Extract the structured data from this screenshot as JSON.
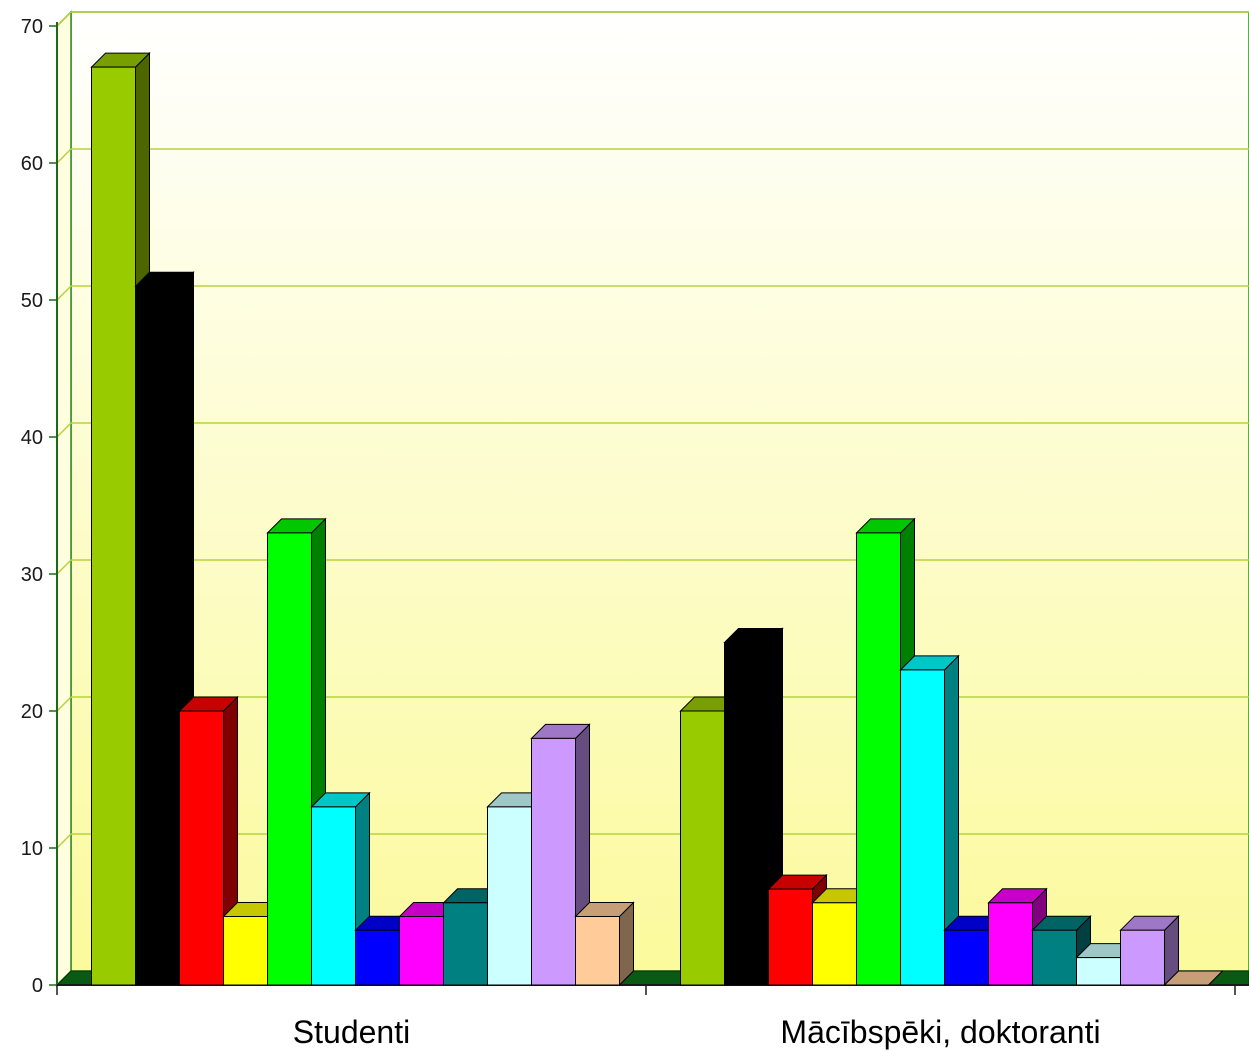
{
  "chart_data": {
    "type": "bar",
    "style": "3d-clustered",
    "categories": [
      "Studenti",
      "Mācībspēki, doktoranti"
    ],
    "series": [
      {
        "color": "#99cc00",
        "values": [
          67,
          20
        ]
      },
      {
        "color": "#000000",
        "values": [
          51,
          25
        ]
      },
      {
        "color": "#ff0000",
        "values": [
          20,
          7
        ]
      },
      {
        "color": "#ffff00",
        "values": [
          5,
          6
        ]
      },
      {
        "color": "#00ff00",
        "values": [
          33,
          33
        ]
      },
      {
        "color": "#00ffff",
        "values": [
          13,
          23
        ]
      },
      {
        "color": "#0000ff",
        "values": [
          4,
          4
        ]
      },
      {
        "color": "#ff00ff",
        "values": [
          5,
          6
        ]
      },
      {
        "color": "#008080",
        "values": [
          6,
          4
        ]
      },
      {
        "color": "#ccffff",
        "values": [
          13,
          2
        ]
      },
      {
        "color": "#cc99ff",
        "values": [
          18,
          4
        ]
      },
      {
        "color": "#ffcc99",
        "values": [
          5,
          0
        ]
      }
    ],
    "yticks": [
      "0",
      "10",
      "20",
      "30",
      "40",
      "50",
      "60",
      "70"
    ],
    "ylim": [
      0,
      70
    ],
    "grid": true,
    "legend": "none",
    "title": "",
    "xlabel": "",
    "ylabel": ""
  }
}
